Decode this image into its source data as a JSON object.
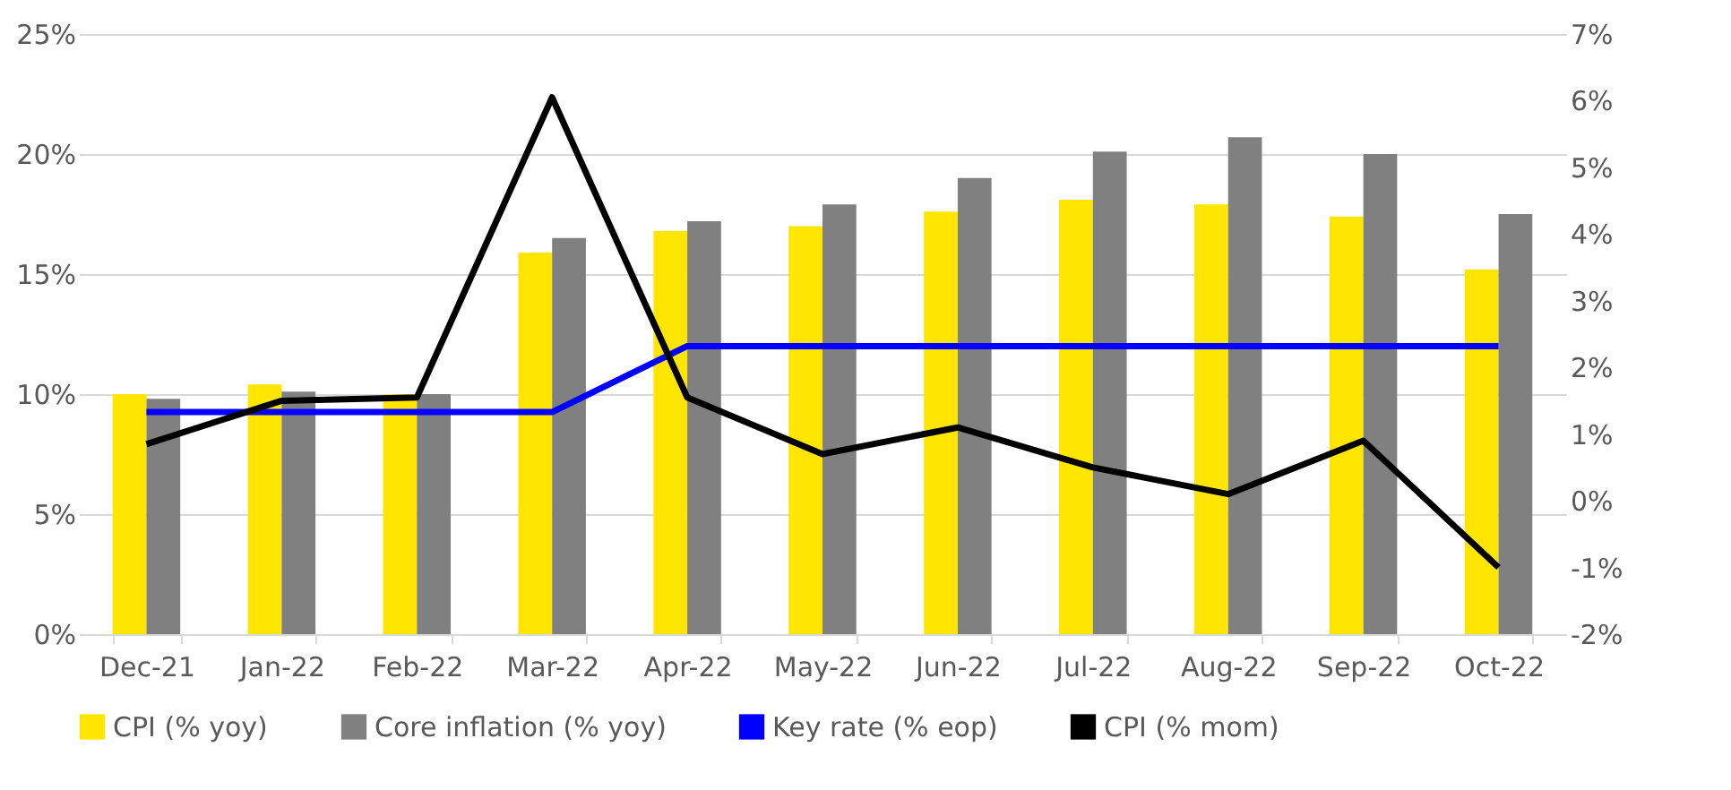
{
  "chart_data": {
    "type": "bar",
    "categories": [
      "Dec-21",
      "Jan-22",
      "Feb-22",
      "Mar-22",
      "Apr-22",
      "May-22",
      "Jun-22",
      "Jul-22",
      "Aug-22",
      "Sep-22",
      "Oct-22"
    ],
    "series": [
      {
        "name": "CPI (% yoy)",
        "color": "#ffe600",
        "values": [
          10.0,
          10.4,
          10.0,
          15.9,
          16.8,
          17.0,
          17.6,
          18.1,
          17.9,
          17.4,
          15.2
        ]
      },
      {
        "name": "Core inflation (% yoy)",
        "color": "#808080",
        "values": [
          9.8,
          10.1,
          10.0,
          16.5,
          17.2,
          17.9,
          19.0,
          20.1,
          20.7,
          20.0,
          17.5
        ]
      },
      {
        "name": "Key rate (% eop)",
        "color": "#0000ff",
        "type": "line",
        "values": [
          9.25,
          9.25,
          9.25,
          9.25,
          12.0,
          12.0,
          12.0,
          12.0,
          12.0,
          12.0,
          12.0
        ]
      },
      {
        "name": "CPI (% mom)",
        "color": "#000000",
        "type": "line",
        "axis": "y2",
        "values": [
          0.85,
          1.5,
          1.55,
          6.05,
          1.55,
          0.7,
          1.1,
          0.5,
          0.1,
          0.9,
          -1.0
        ]
      }
    ],
    "ylim": [
      0,
      25
    ],
    "yticks": [
      {
        "value": 0,
        "label": "0%"
      },
      {
        "value": 5,
        "label": "5%"
      },
      {
        "value": 10,
        "label": "10%"
      },
      {
        "value": 15,
        "label": "15%"
      },
      {
        "value": 20,
        "label": "20%"
      },
      {
        "value": 25,
        "label": "25%"
      }
    ],
    "y2lim": [
      -2,
      7
    ],
    "y2ticks": [
      {
        "value": -2,
        "label": "-2%"
      },
      {
        "value": -1,
        "label": "-1%"
      },
      {
        "value": 0,
        "label": "0%"
      },
      {
        "value": 1,
        "label": "1%"
      },
      {
        "value": 2,
        "label": "2%"
      },
      {
        "value": 3,
        "label": "3%"
      },
      {
        "value": 4,
        "label": "4%"
      },
      {
        "value": 5,
        "label": "5%"
      },
      {
        "value": 6,
        "label": "6%"
      },
      {
        "value": 7,
        "label": "7%"
      }
    ],
    "grid": "y",
    "legend": "bottom",
    "line_style": "solid",
    "marker": "none"
  }
}
